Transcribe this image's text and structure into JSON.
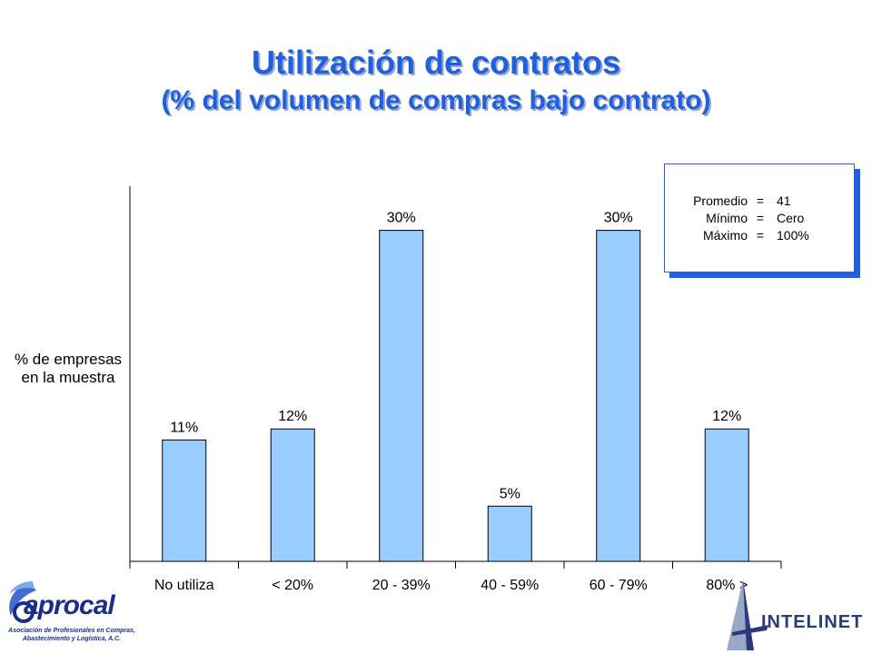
{
  "chart_data": {
    "type": "bar",
    "title": "Utilización de contratos",
    "subtitle": "(% del volumen de compras bajo contrato)",
    "ylabel": [
      "% de empresas",
      "en la muestra"
    ],
    "xlabel": "",
    "categories": [
      "No utiliza",
      "< 20%",
      "20 - 39%",
      "40 - 59%",
      "60 - 79%",
      "80% >"
    ],
    "values": [
      11,
      12,
      30,
      5,
      30,
      12
    ],
    "data_labels": [
      "11%",
      "12%",
      "30%",
      "5%",
      "30%",
      "12%"
    ],
    "ylim": [
      0,
      34
    ],
    "grid": false,
    "legend": "none",
    "bar_color": "#99ccff"
  },
  "stats_box": {
    "rows": [
      {
        "key": "Promedio",
        "eq": "=",
        "value": "41"
      },
      {
        "key": "Mínimo",
        "eq": "=",
        "value": "Cero"
      },
      {
        "key": "Máximo",
        "eq": "=",
        "value": "100%"
      }
    ]
  },
  "logos": {
    "left": {
      "name": "aprocal",
      "tagline": [
        "Asociación de Profesionales en Compras,",
        "Abastecimiento y Logística, A.C."
      ]
    },
    "right": {
      "name": "INTELINET"
    }
  },
  "colors": {
    "title": "#1f5fe0",
    "bar": "#99ccff",
    "axis": "#000000"
  }
}
